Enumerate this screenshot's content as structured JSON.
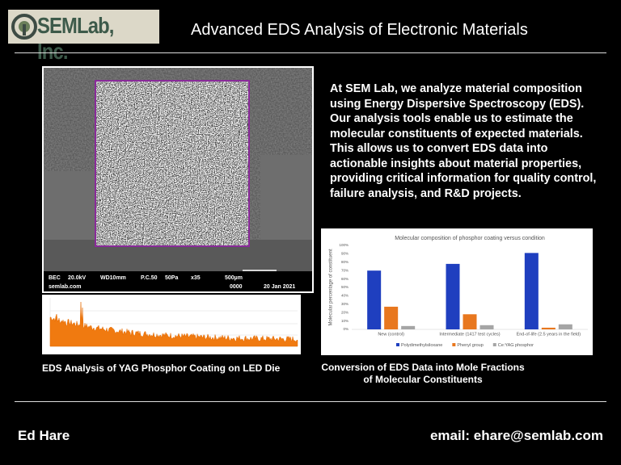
{
  "header": {
    "logo": "SEMLab, Inc.",
    "title": "Advanced EDS Analysis of Electronic Materials"
  },
  "sem_image": {
    "labels": [
      "BEC",
      "20.0kV",
      "WD10mm",
      "P.C.50",
      "50Pa",
      "x35",
      "500µm",
      "semlab.com",
      "0000",
      "20 Jan 2021"
    ]
  },
  "left_caption": "EDS Analysis of YAG Phosphor Coating on LED Die",
  "description": "At SEM Lab, we analyze material composition using Energy Dispersive Spectroscopy (EDS). Our analysis tools enable us to estimate the molecular constituents of expected materials. This allows us to convert EDS data into actionable insights about material properties, providing critical information for quality control, failure analysis, and R&D projects.",
  "chart_data": {
    "type": "bar",
    "title": "Molecular composition of phosphor coating versus condition",
    "y_label": "Molecular percentage of constituent",
    "categories": [
      "New (control)",
      "Intermediate (1417 test cycles)",
      "End-of-life (2.5 years in the field)"
    ],
    "series": [
      {
        "name": "Polydimethylsiloxane",
        "color": "#1f3fbf",
        "values": [
          70,
          78,
          91
        ]
      },
      {
        "name": "Phenyl group",
        "color": "#e8771e",
        "values": [
          27,
          18,
          2
        ]
      },
      {
        "name": "Ce:YAG phosphor",
        "color": "#a5a5a5",
        "values": [
          4,
          5,
          6
        ]
      }
    ],
    "ylim": [
      0,
      100
    ],
    "yticks": [
      {
        "value": 0,
        "label": "0%"
      },
      {
        "value": 10,
        "label": "10%"
      },
      {
        "value": 20,
        "label": "20%"
      },
      {
        "value": 30,
        "label": "30%"
      },
      {
        "value": 40,
        "label": "40%"
      },
      {
        "value": 50,
        "label": "50%"
      },
      {
        "value": 60,
        "label": "60%"
      },
      {
        "value": 70,
        "label": "70%"
      },
      {
        "value": 80,
        "label": "80%"
      },
      {
        "value": 90,
        "label": "90%"
      },
      {
        "value": 100,
        "label": "100%"
      }
    ],
    "grid": false,
    "legend": "bottom"
  },
  "right_caption": [
    "Conversion of EDS Data into Mole Fractions",
    "of Molecular Constituents"
  ],
  "footer": {
    "name": "Ed Hare",
    "email": "email: ehare@semlab.com"
  }
}
